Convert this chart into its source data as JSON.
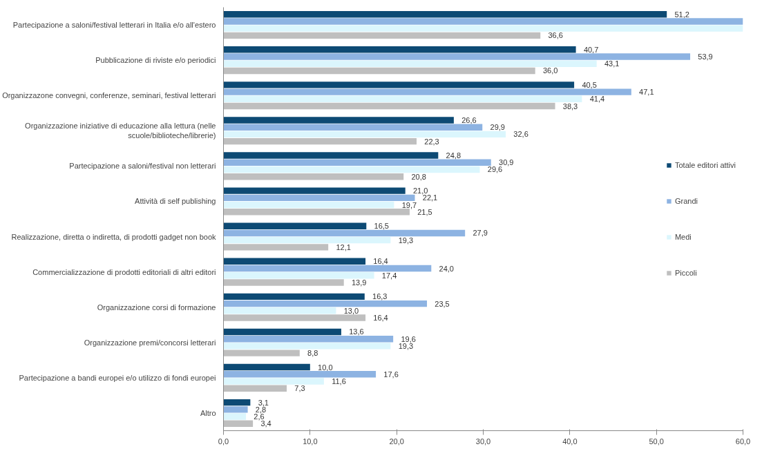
{
  "chart_data": {
    "type": "bar",
    "orientation": "horizontal",
    "categories": [
      "Partecipazione a saloni/festival letterari in Italia e/o all'estero",
      "Pubblicazione di riviste e/o periodici",
      "Organizzazone convegni, conferenze, seminari, festival letterari",
      "Organizzazione iniziative di educazione alla lettura (nelle scuole/biblioteche/librerie)",
      "Partecipazione a saloni/festival non letterari",
      "Attività di self publishing",
      "Realizzazione, diretta o indiretta, di prodotti gadget non book",
      "Commercializzazione di prodotti editoriali di altri editori",
      "Organizzazione corsi di formazione",
      "Organizzazione premi/concorsi letterari",
      "Partecipazione a bandi europei e/o utilizzo di fondi europei",
      "Altro"
    ],
    "series": [
      {
        "name": "Totale editori attivi",
        "color": "#0d4a74",
        "values": [
          51.2,
          40.7,
          40.5,
          26.6,
          24.8,
          21.0,
          16.5,
          16.4,
          16.3,
          13.6,
          10.0,
          3.1
        ],
        "value_labels": [
          "51,2",
          "40,7",
          "40,5",
          "26,6",
          "24,8",
          "21,0",
          "16,5",
          "16,4",
          "16,3",
          "13,6",
          "10,0",
          "3,1"
        ]
      },
      {
        "name": "Grandi",
        "color": "#8db3e2",
        "values": [
          60.0,
          53.9,
          47.1,
          29.9,
          30.9,
          22.1,
          27.9,
          24.0,
          23.5,
          19.6,
          17.6,
          2.8
        ],
        "value_labels": [
          null,
          "53,9",
          "47,1",
          "29,9",
          "30,9",
          "22,1",
          "27,9",
          "24,0",
          "23,5",
          "19,6",
          "17,6",
          "2,8"
        ]
      },
      {
        "name": "Medi",
        "color": "#dbf6fd",
        "values": [
          60.0,
          43.1,
          41.4,
          32.6,
          29.6,
          19.7,
          19.3,
          17.4,
          13.0,
          19.3,
          11.6,
          2.6
        ],
        "value_labels": [
          null,
          "43,1",
          "41,4",
          "32,6",
          "29,6",
          "19,7",
          "19,3",
          "17,4",
          "13,0",
          "19,3",
          "11,6",
          "2,6"
        ]
      },
      {
        "name": "Piccoli",
        "color": "#bfbfbf",
        "values": [
          36.6,
          36.0,
          38.3,
          22.3,
          20.8,
          21.5,
          12.1,
          13.9,
          16.4,
          8.8,
          7.3,
          3.4
        ],
        "value_labels": [
          "36,6",
          "36,0",
          "38,3",
          "22,3",
          "20,8",
          "21,5",
          "12,1",
          "13,9",
          "16,4",
          "8,8",
          "7,3",
          "3,4"
        ]
      }
    ],
    "xlim": [
      0,
      60
    ],
    "xticks": [
      {
        "value": 0,
        "label": "0,0"
      },
      {
        "value": 10,
        "label": "10,0"
      },
      {
        "value": 20,
        "label": "20,0"
      },
      {
        "value": 30,
        "label": "30,0"
      },
      {
        "value": 40,
        "label": "40,0"
      },
      {
        "value": 50,
        "label": "50,0"
      },
      {
        "value": 60,
        "label": "60,0"
      }
    ],
    "grid": false,
    "legend": "right"
  }
}
